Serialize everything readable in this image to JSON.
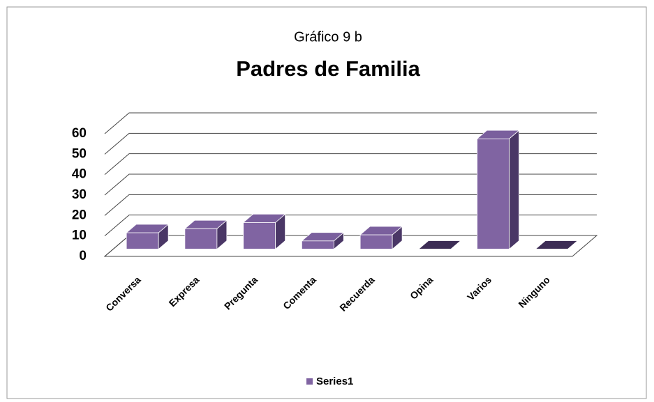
{
  "chart_data": {
    "type": "bar3d",
    "title": "Gráfico 9 b",
    "subtitle": "Padres de Familia",
    "categories": [
      "Conversa",
      "Expresa",
      "Pregunta",
      "Comenta",
      "Recuerda",
      "Opina",
      "Varios",
      "Ninguno"
    ],
    "series": [
      {
        "name": "Series1",
        "color": "#8064a2",
        "values": [
          8,
          10,
          13,
          4,
          7,
          0,
          54,
          0
        ]
      }
    ],
    "ylim": [
      0,
      60
    ],
    "yticks": [
      0,
      10,
      20,
      30,
      40,
      50,
      60
    ],
    "grid": true,
    "legend": "bottom"
  }
}
